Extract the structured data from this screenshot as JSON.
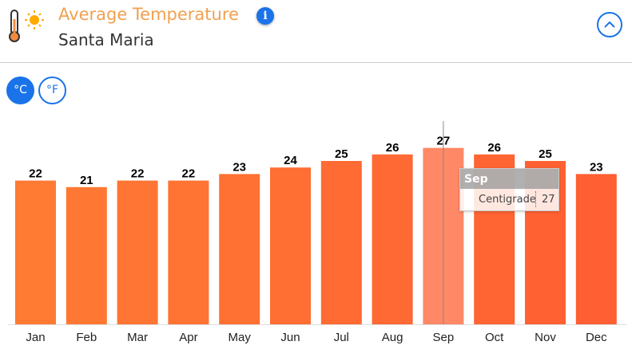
{
  "header": {
    "title": "Average Temperature",
    "subtitle": "Santa Maria",
    "info_icon": "info-icon",
    "collapse_icon": "chevron-up-icon"
  },
  "units": {
    "celsius": "°C",
    "fahrenheit": "°F",
    "selected": "celsius"
  },
  "tooltip": {
    "month": "Sep",
    "label": "Centigrade",
    "value": "27"
  },
  "colors": {
    "accent": "#1a73e8",
    "title": "#f0a050",
    "bar_start": "#ff7a33",
    "bar_end": "#ff5f33",
    "bar_hover": "#ff8866"
  },
  "chart_data": {
    "type": "bar",
    "categories": [
      "Jan",
      "Feb",
      "Mar",
      "Apr",
      "May",
      "Jun",
      "Jul",
      "Aug",
      "Sep",
      "Oct",
      "Nov",
      "Dec"
    ],
    "values": [
      22,
      21,
      22,
      22,
      23,
      24,
      25,
      26,
      27,
      26,
      25,
      23
    ],
    "series": [
      {
        "name": "Centigrade",
        "values": [
          22,
          21,
          22,
          22,
          23,
          24,
          25,
          26,
          27,
          26,
          25,
          23
        ]
      }
    ],
    "ylim": [
      0,
      30
    ],
    "grid": false,
    "data_labels": true,
    "highlighted": "Sep"
  }
}
